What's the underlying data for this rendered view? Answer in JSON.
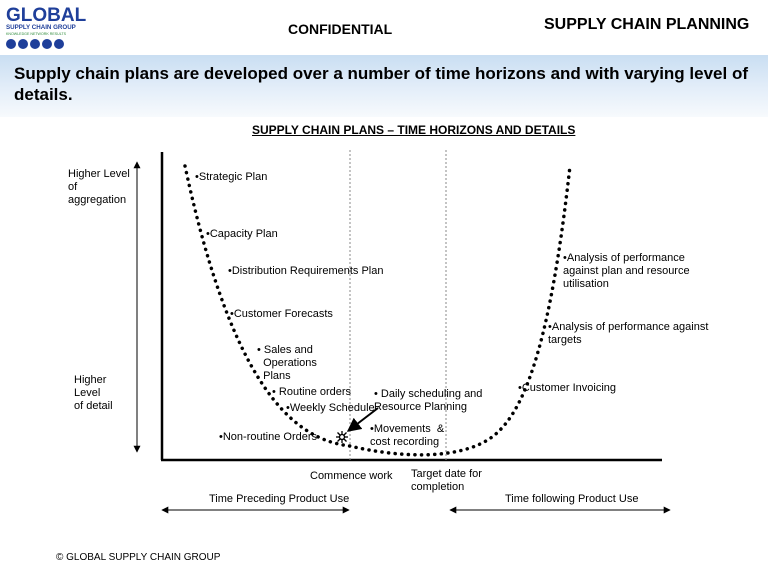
{
  "header": {
    "logo": {
      "word": "GLOBAL",
      "line1": "SUPPLY CHAIN GROUP",
      "line2": "KNOWLEDGE  NETWORK  RESULTS"
    },
    "confidential": "CONFIDENTIAL",
    "section": "SUPPLY CHAIN PLANNING"
  },
  "headline": "Supply chain plans are developed over a number of time horizons and with varying level of details.",
  "diagram": {
    "title": "SUPPLY CHAIN PLANS – TIME HORIZONS AND DETAILS",
    "y_top": "Higher Level\nof\naggregation",
    "y_bottom": "Higher\nLevel\nof detail",
    "x_commence": "Commence work",
    "x_target": "Target date for\ncompletion",
    "preceding": "Time Preceding Product Use",
    "following": "Time following Product Use",
    "items": {
      "strategic": "•Strategic Plan",
      "capacity": "•Capacity Plan",
      "distribution": "•Distribution Requirements Plan",
      "forecasts": "•Customer Forecasts",
      "sop": "• Sales and\n  Operations\n  Plans",
      "routine": "• Routine orders",
      "weekly": "•Weekly Schedule",
      "nonroutine": "•Non-routine Orders",
      "daily": "• Daily scheduling and\nResource Planning",
      "movements": "•Movements  &\ncost recording",
      "invoicing": "•Customer Invoicing",
      "perf_targets": "•Analysis of performance against\ntargets",
      "perf_plan": "•Analysis of performance\nagainst plan and resource\nutilisation"
    }
  },
  "colors": {
    "logo_blue": "#1f3f9a",
    "logo_green": "#2e8b3a",
    "band": "#cfe1f4"
  },
  "footer": "© GLOBAL SUPPLY CHAIN GROUP"
}
